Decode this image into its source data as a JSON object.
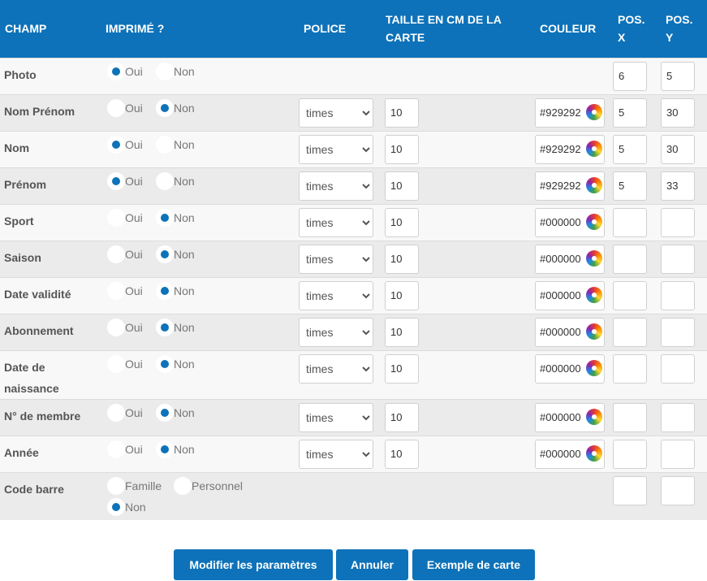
{
  "headers": {
    "champ": "CHAMP",
    "imprime": "IMPRIMÉ ?",
    "police": "POLICE",
    "taille": "TAILLE EN CM DE LA CARTE",
    "couleur": "COULEUR",
    "posx": "POS. X",
    "posy": "POS. Y"
  },
  "radio_labels": {
    "oui": "Oui",
    "non": "Non",
    "famille": "Famille",
    "personnel": "Personnel"
  },
  "rows": [
    {
      "field": "Photo",
      "printed": "Oui",
      "font": "",
      "size": "",
      "color": "",
      "x": "6",
      "y": "5"
    },
    {
      "field": "Nom Prénom",
      "printed": "Non",
      "font": "times",
      "size": "10",
      "color": "#929292",
      "x": "5",
      "y": "30"
    },
    {
      "field": "Nom",
      "printed": "Oui",
      "font": "times",
      "size": "10",
      "color": "#929292",
      "x": "5",
      "y": "30"
    },
    {
      "field": "Prénom",
      "printed": "Oui",
      "font": "times",
      "size": "10",
      "color": "#929292",
      "x": "5",
      "y": "33"
    },
    {
      "field": "Sport",
      "printed": "Non",
      "font": "times",
      "size": "10",
      "color": "#000000",
      "x": "",
      "y": ""
    },
    {
      "field": "Saison",
      "printed": "Non",
      "font": "times",
      "size": "10",
      "color": "#000000",
      "x": "",
      "y": ""
    },
    {
      "field": "Date validité",
      "printed": "Non",
      "font": "times",
      "size": "10",
      "color": "#000000",
      "x": "",
      "y": ""
    },
    {
      "field": "Abonnement",
      "printed": "Non",
      "font": "times",
      "size": "10",
      "color": "#000000",
      "x": "",
      "y": ""
    },
    {
      "field": "Date de naissance",
      "printed": "Non",
      "font": "times",
      "size": "10",
      "color": "#000000",
      "x": "",
      "y": ""
    },
    {
      "field": "N° de membre",
      "printed": "Non",
      "font": "times",
      "size": "10",
      "color": "#000000",
      "x": "",
      "y": ""
    },
    {
      "field": "Année",
      "printed": "Non",
      "font": "times",
      "size": "10",
      "color": "#000000",
      "x": "",
      "y": ""
    },
    {
      "field": "Code barre",
      "printed": "Non",
      "font": "",
      "size": "",
      "color": "",
      "x": "",
      "y": ""
    }
  ],
  "font_option": "times",
  "buttons": {
    "modify": "Modifier les paramètres",
    "cancel": "Annuler",
    "example": "Exemple de carte"
  }
}
